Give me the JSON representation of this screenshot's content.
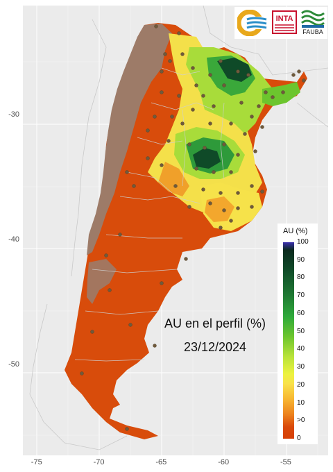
{
  "map": {
    "y_ticks": [
      {
        "label": "-30",
        "lat": -30
      },
      {
        "label": "-40",
        "lat": -40
      },
      {
        "label": "-50",
        "lat": -50
      }
    ],
    "x_ticks": [
      {
        "label": "-75",
        "lon": -75
      },
      {
        "label": "-70",
        "lon": -70
      },
      {
        "label": "-65",
        "lon": -65
      },
      {
        "label": "-60",
        "lon": -60
      },
      {
        "label": "-55",
        "lon": -55
      }
    ],
    "colors": {
      "background": "#ebebeb",
      "grid": "#ffffff",
      "dry": "#d84c0b",
      "brown": "#9d7b68",
      "station": "#6f5a3c"
    }
  },
  "overlay": {
    "title": "AU en el perfil (%)",
    "date": "23/12/2024"
  },
  "legend": {
    "title": "AU (%)",
    "labels": [
      "100",
      "90",
      "80",
      "70",
      "60",
      "50",
      "40",
      "30",
      "20",
      "10",
      ">0",
      "0"
    ]
  },
  "logos": {
    "inta": "INTA",
    "fauba": "FAUBA"
  }
}
